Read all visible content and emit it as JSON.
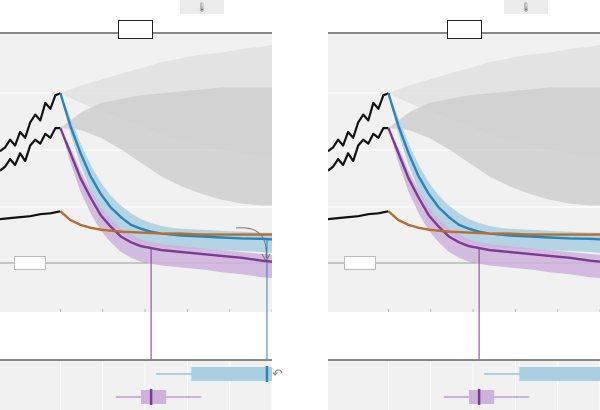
{
  "title": "",
  "icons": {
    "thermometer": "thermometer-icon",
    "return_arrow": "return-arrow-icon",
    "thermometer_glyph": "🌡",
    "arrow_glyph": "↶"
  },
  "colors": {
    "blue": "#2a84b8",
    "blue_band": "#a9cfe2",
    "purple": "#7d3a93",
    "purple_band": "#cdb2dc",
    "orange": "#b86e2e",
    "black": "#111111",
    "gray_fan": "#e1e1e1",
    "gray_fan_dark": "#cfcfcf"
  },
  "panels": [
    {
      "name": "left",
      "header_label": "",
      "thermo_label": "",
      "legend_label": "",
      "show_callout": true
    },
    {
      "name": "right",
      "header_label": "",
      "thermo_label": "",
      "legend_label": "",
      "show_callout": false
    }
  ],
  "chart_data": {
    "type": "line",
    "title": "",
    "xlabel": "",
    "ylabel": "",
    "grid": true,
    "x_range": [
      0,
      27
    ],
    "y_range": [
      0,
      14
    ],
    "observed_end_x": 6,
    "highlight_marker_x": {
      "purple": 15,
      "blue": 26.5
    },
    "historical_series": [
      {
        "key": "upper",
        "color": "black",
        "x": [
          0,
          0.5,
          1,
          1.5,
          2,
          2.5,
          3,
          3.5,
          4,
          4.5,
          5,
          5.5,
          6
        ],
        "y": [
          8.3,
          8.5,
          8.9,
          8.6,
          9.3,
          9.0,
          9.8,
          10.2,
          9.9,
          10.8,
          10.5,
          11.2,
          11.3
        ]
      },
      {
        "key": "middle",
        "color": "black",
        "x": [
          0,
          0.5,
          1,
          1.5,
          2,
          2.5,
          3,
          3.5,
          4,
          4.5,
          5,
          5.5,
          6
        ],
        "y": [
          7.3,
          7.5,
          7.9,
          7.6,
          8.2,
          7.8,
          8.6,
          8.9,
          8.7,
          9.2,
          9.0,
          9.5,
          9.5
        ]
      },
      {
        "key": "lower",
        "color": "black",
        "x": [
          0,
          1,
          2,
          3,
          4,
          5,
          6
        ],
        "y": [
          4.8,
          4.85,
          4.9,
          4.95,
          5.05,
          5.1,
          5.2
        ]
      }
    ],
    "projection_series": [
      {
        "key": "blue",
        "color": "blue",
        "x": [
          6,
          7,
          8,
          9,
          10,
          11,
          12,
          13,
          14,
          15,
          16,
          17,
          18,
          20,
          22,
          24,
          26,
          27
        ],
        "y": [
          11.3,
          9.6,
          8.2,
          7.0,
          6.1,
          5.4,
          4.9,
          4.5,
          4.3,
          4.15,
          4.05,
          4.0,
          3.95,
          3.9,
          3.85,
          3.8,
          3.78,
          3.75
        ],
        "band_low": [
          11.3,
          9.2,
          7.6,
          6.3,
          5.3,
          4.6,
          4.1,
          3.75,
          3.55,
          3.45,
          3.4,
          3.35,
          3.3,
          3.25,
          3.2,
          3.15,
          3.1,
          3.05
        ],
        "band_high": [
          11.3,
          10.0,
          8.7,
          7.6,
          6.7,
          6.0,
          5.5,
          5.1,
          4.8,
          4.6,
          4.45,
          4.35,
          4.3,
          4.25,
          4.2,
          4.15,
          4.1,
          4.1
        ]
      },
      {
        "key": "purple",
        "color": "purple",
        "x": [
          6,
          7,
          8,
          9,
          10,
          11,
          12,
          13,
          14,
          15,
          16,
          17,
          18,
          20,
          22,
          24,
          26,
          27
        ],
        "y": [
          9.5,
          8.2,
          6.9,
          5.9,
          5.0,
          4.4,
          3.9,
          3.6,
          3.4,
          3.3,
          3.2,
          3.15,
          3.1,
          3.0,
          2.9,
          2.8,
          2.65,
          2.6
        ],
        "band_low": [
          9.5,
          7.7,
          6.2,
          5.1,
          4.2,
          3.6,
          3.1,
          2.8,
          2.6,
          2.5,
          2.4,
          2.35,
          2.3,
          2.2,
          2.05,
          1.95,
          1.8,
          1.75
        ],
        "band_high": [
          9.5,
          8.5,
          7.3,
          6.3,
          5.4,
          4.8,
          4.3,
          4.0,
          3.75,
          3.6,
          3.5,
          3.45,
          3.4,
          3.3,
          3.2,
          3.1,
          3.0,
          2.95
        ]
      },
      {
        "key": "orange",
        "color": "orange",
        "x": [
          6,
          7,
          8,
          9,
          10,
          12,
          14,
          16,
          18,
          20,
          22,
          24,
          26,
          27
        ],
        "y": [
          5.2,
          4.75,
          4.5,
          4.35,
          4.25,
          4.15,
          4.1,
          4.05,
          4.05,
          4.0,
          4.0,
          4.0,
          4.0,
          4.0
        ]
      }
    ],
    "gray_fans": [
      {
        "key": "upper_fan",
        "x": [
          6,
          8,
          10,
          12,
          14,
          16,
          18,
          20,
          22,
          24,
          26,
          27
        ],
        "low": [
          11.3,
          10.8,
          10.4,
          10.0,
          9.6,
          9.2,
          8.9,
          8.6,
          8.4,
          8.2,
          8.0,
          7.9
        ],
        "high": [
          11.3,
          11.7,
          12.0,
          12.3,
          12.6,
          12.9,
          13.1,
          13.3,
          13.4,
          13.6,
          13.7,
          13.8
        ]
      },
      {
        "key": "middle_fan",
        "x": [
          6,
          8,
          10,
          12,
          14,
          16,
          18,
          20,
          22,
          24,
          26,
          27
        ],
        "low": [
          9.5,
          9.4,
          9.0,
          8.4,
          7.7,
          7.0,
          6.5,
          6.1,
          5.8,
          5.6,
          5.5,
          5.5
        ],
        "high": [
          9.5,
          10.3,
          10.8,
          11.0,
          11.2,
          11.3,
          11.4,
          11.5,
          11.6,
          11.6,
          11.6,
          11.6
        ]
      }
    ],
    "box_rows": [
      {
        "key": "blue",
        "color": "blue",
        "whisker": [
          15.5,
          27
        ],
        "box": [
          19,
          27
        ],
        "median": 26.5
      },
      {
        "key": "purple",
        "color": "purple",
        "whisker": [
          11.5,
          20
        ],
        "box": [
          14,
          16.5
        ],
        "median": 15
      }
    ]
  }
}
